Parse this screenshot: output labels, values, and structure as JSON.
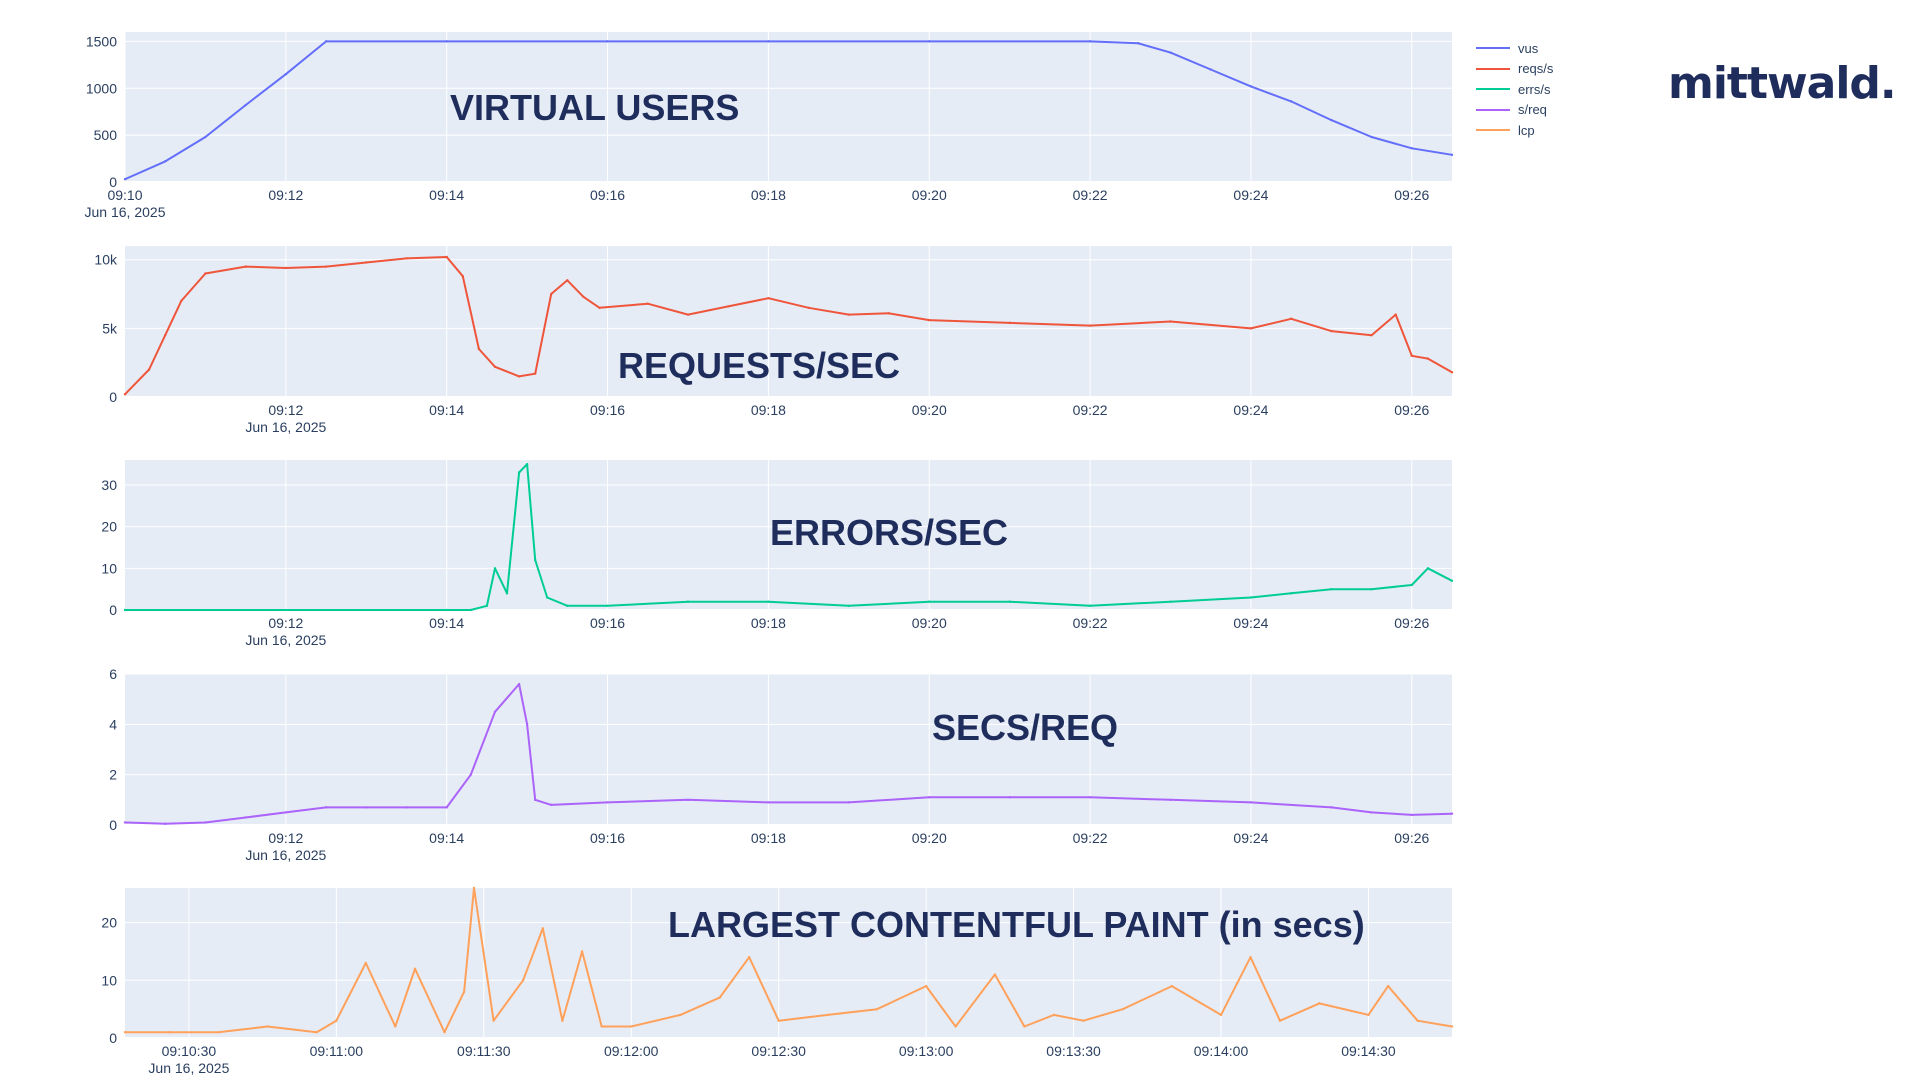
{
  "legend": {
    "items": [
      {
        "name": "vus",
        "color": "#636efa"
      },
      {
        "name": "reqs/s",
        "color": "#ef553b"
      },
      {
        "name": "errs/s",
        "color": "#00cc96"
      },
      {
        "name": "s/req",
        "color": "#ab63fa"
      },
      {
        "name": "lcp",
        "color": "#ffa15a"
      }
    ]
  },
  "logo": {
    "text": "mittwald."
  },
  "chart_data": [
    {
      "type": "line",
      "title": "VIRTUAL USERS",
      "series_name": "vus",
      "color": "#636efa",
      "x_range": [
        "09:10",
        "09:26.5"
      ],
      "ylim": [
        0,
        1600
      ],
      "y_ticks": [
        {
          "v": 0,
          "label": "0"
        },
        {
          "v": 500,
          "label": "500"
        },
        {
          "v": 1000,
          "label": "1000"
        },
        {
          "v": 1500,
          "label": "1500"
        }
      ],
      "x_ticks": [
        "09:10",
        "09:12",
        "09:14",
        "09:16",
        "09:18",
        "09:20",
        "09:22",
        "09:24",
        "09:26"
      ],
      "x_date_label": "Jun 16, 2025",
      "x": [
        "09:10",
        "09:10.5",
        "09:11",
        "09:11.5",
        "09:12",
        "09:12.5",
        "09:14",
        "09:16",
        "09:18",
        "09:20",
        "09:22",
        "09:22.6",
        "09:23",
        "09:23.5",
        "09:24",
        "09:24.5",
        "09:25",
        "09:25.5",
        "09:26",
        "09:26.5"
      ],
      "values": [
        30,
        220,
        480,
        820,
        1150,
        1500,
        1500,
        1500,
        1500,
        1500,
        1500,
        1480,
        1380,
        1200,
        1020,
        860,
        660,
        480,
        360,
        290
      ]
    },
    {
      "type": "line",
      "title": "REQUESTS/SEC",
      "series_name": "reqs/s",
      "color": "#ef553b",
      "x_range": [
        "09:10",
        "09:26.5"
      ],
      "ylim": [
        0,
        11000
      ],
      "y_ticks": [
        {
          "v": 0,
          "label": "0"
        },
        {
          "v": 5000,
          "label": "5k"
        },
        {
          "v": 10000,
          "label": "10k"
        }
      ],
      "x_ticks": [
        "09:12",
        "09:14",
        "09:16",
        "09:18",
        "09:20",
        "09:22",
        "09:24",
        "09:26"
      ],
      "x_date_label": "Jun 16, 2025",
      "x": [
        "09:10",
        "09:10.3",
        "09:10.5",
        "09:10.7",
        "09:11",
        "09:11.5",
        "09:12",
        "09:12.5",
        "09:13",
        "09:13.5",
        "09:14",
        "09:14.2",
        "09:14.4",
        "09:14.6",
        "09:14.9",
        "09:15.1",
        "09:15.3",
        "09:15.5",
        "09:15.7",
        "09:15.9",
        "09:16.5",
        "09:17",
        "09:17.5",
        "09:18",
        "09:18.5",
        "09:19",
        "09:19.5",
        "09:20",
        "09:21",
        "09:22",
        "09:23",
        "09:24",
        "09:24.5",
        "09:25",
        "09:25.5",
        "09:25.8",
        "09:26",
        "09:26.2",
        "09:26.5"
      ],
      "values": [
        200,
        2000,
        4500,
        7000,
        9000,
        9500,
        9400,
        9500,
        9800,
        10100,
        10200,
        8800,
        3500,
        2200,
        1500,
        1700,
        7500,
        8500,
        7300,
        6500,
        6800,
        6000,
        6600,
        7200,
        6500,
        6000,
        6100,
        5600,
        5400,
        5200,
        5500,
        5000,
        5700,
        4800,
        4500,
        6000,
        3000,
        2800,
        1800
      ]
    },
    {
      "type": "line",
      "title": "ERRORS/SEC",
      "series_name": "errs/s",
      "color": "#00cc96",
      "x_range": [
        "09:10",
        "09:26.5"
      ],
      "ylim": [
        0,
        36
      ],
      "y_ticks": [
        {
          "v": 0,
          "label": "0"
        },
        {
          "v": 10,
          "label": "10"
        },
        {
          "v": 20,
          "label": "20"
        },
        {
          "v": 30,
          "label": "30"
        }
      ],
      "x_ticks": [
        "09:12",
        "09:14",
        "09:16",
        "09:18",
        "09:20",
        "09:22",
        "09:24",
        "09:26"
      ],
      "x_date_label": "Jun 16, 2025",
      "x": [
        "09:10",
        "09:14",
        "09:14.3",
        "09:14.5",
        "09:14.6",
        "09:14.75",
        "09:14.9",
        "09:15",
        "09:15.1",
        "09:15.25",
        "09:15.5",
        "09:16",
        "09:17",
        "09:18",
        "09:19",
        "09:20",
        "09:21",
        "09:22",
        "09:23",
        "09:24",
        "09:24.5",
        "09:25",
        "09:25.5",
        "09:26",
        "09:26.2",
        "09:26.5"
      ],
      "values": [
        0,
        0,
        0,
        1,
        10,
        4,
        33,
        35,
        12,
        3,
        1,
        1,
        2,
        2,
        1,
        2,
        2,
        1,
        2,
        3,
        4,
        5,
        5,
        6,
        10,
        7
      ]
    },
    {
      "type": "line",
      "title": "SECS/REQ",
      "series_name": "s/req",
      "color": "#ab63fa",
      "x_range": [
        "09:10",
        "09:26.5"
      ],
      "ylim": [
        0,
        6
      ],
      "y_ticks": [
        {
          "v": 0,
          "label": "0"
        },
        {
          "v": 2,
          "label": "2"
        },
        {
          "v": 4,
          "label": "4"
        },
        {
          "v": 6,
          "label": "6"
        }
      ],
      "x_ticks": [
        "09:12",
        "09:14",
        "09:16",
        "09:18",
        "09:20",
        "09:22",
        "09:24",
        "09:26"
      ],
      "x_date_label": "Jun 16, 2025",
      "x": [
        "09:10",
        "09:10.5",
        "09:11",
        "09:11.5",
        "09:12",
        "09:12.5",
        "09:13",
        "09:13.5",
        "09:14",
        "09:14.3",
        "09:14.6",
        "09:14.9",
        "09:15",
        "09:15.1",
        "09:15.3",
        "09:16",
        "09:17",
        "09:18",
        "09:19",
        "09:20",
        "09:21",
        "09:22",
        "09:23",
        "09:24",
        "09:25",
        "09:25.5",
        "09:26",
        "09:26.5"
      ],
      "values": [
        0.1,
        0.05,
        0.1,
        0.3,
        0.5,
        0.7,
        0.7,
        0.7,
        0.7,
        2.0,
        4.5,
        5.6,
        4.0,
        1.0,
        0.8,
        0.9,
        1.0,
        0.9,
        0.9,
        1.1,
        1.1,
        1.1,
        1.0,
        0.9,
        0.7,
        0.5,
        0.4,
        0.45
      ]
    },
    {
      "type": "line",
      "title": "LARGEST CONTENTFUL PAINT (in secs)",
      "series_name": "lcp",
      "color": "#ffa15a",
      "x_range": [
        "09:10:17",
        "09:14:47"
      ],
      "ylim": [
        0,
        26
      ],
      "y_ticks": [
        {
          "v": 0,
          "label": "0"
        },
        {
          "v": 10,
          "label": "10"
        },
        {
          "v": 20,
          "label": "20"
        }
      ],
      "x_ticks": [
        "09:10:30",
        "09:11:00",
        "09:11:30",
        "09:12:00",
        "09:12:30",
        "09:13:00",
        "09:13:30",
        "09:14:00",
        "09:14:30"
      ],
      "x_date_label": "Jun 16, 2025",
      "x": [
        "09:10:17",
        "09:10:26",
        "09:10:36",
        "09:10:46",
        "09:10:56",
        "09:11:00",
        "09:11:06",
        "09:11:12",
        "09:11:16",
        "09:11:22",
        "09:11:26",
        "09:11:28",
        "09:11:32",
        "09:11:38",
        "09:11:42",
        "09:11:46",
        "09:11:50",
        "09:11:54",
        "09:12:00",
        "09:12:10",
        "09:12:18",
        "09:12:24",
        "09:12:30",
        "09:12:40",
        "09:12:50",
        "09:13:00",
        "09:13:06",
        "09:13:14",
        "09:13:20",
        "09:13:26",
        "09:13:32",
        "09:13:40",
        "09:13:50",
        "09:14:00",
        "09:14:06",
        "09:14:12",
        "09:14:20",
        "09:14:30",
        "09:14:34",
        "09:14:40",
        "09:14:47"
      ],
      "values": [
        1,
        1,
        1,
        2,
        1,
        3,
        13,
        2,
        12,
        1,
        8,
        26,
        3,
        10,
        19,
        3,
        15,
        2,
        2,
        4,
        7,
        14,
        3,
        4,
        5,
        9,
        2,
        11,
        2,
        4,
        3,
        5,
        9,
        4,
        14,
        3,
        6,
        4,
        9,
        3,
        2
      ]
    }
  ]
}
